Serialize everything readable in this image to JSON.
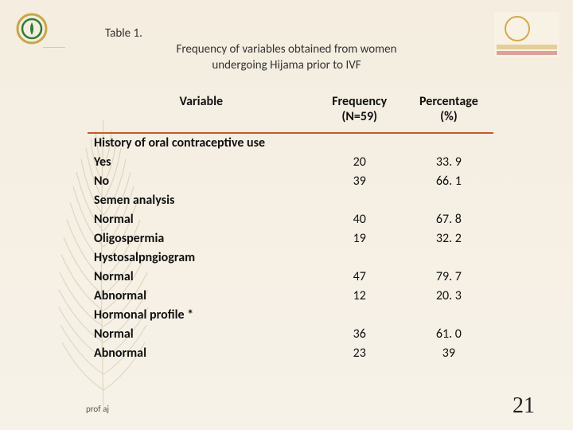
{
  "colors": {
    "feather_stroke": "#b5a77a",
    "logo_left_green": "#2e7d32",
    "logo_left_gold": "#c9a54a",
    "logo_right_red": "#b02a2a",
    "logo_right_gold": "#d4a94e",
    "hr_color": "#c55a2b"
  },
  "header": {
    "table_label": "Table 1.",
    "caption_line1": "Frequency of variables obtained from women",
    "caption_line2": "undergoing Hijama prior to IVF"
  },
  "table": {
    "columns": {
      "variable": "Variable",
      "frequency_line1": "Frequency",
      "frequency_line2": "(N=59)",
      "percentage_line1": "Percentage",
      "percentage_line2": "(%)"
    },
    "rows": [
      {
        "variable": "History of  oral contraceptive use",
        "frequency": "",
        "percentage": ""
      },
      {
        "variable": "Yes",
        "frequency": "20",
        "percentage": "33. 9"
      },
      {
        "variable": "No",
        "frequency": "39",
        "percentage": "66. 1"
      },
      {
        "variable": "Semen analysis",
        "frequency": "",
        "percentage": ""
      },
      {
        "variable": "Normal",
        "frequency": "40",
        "percentage": "67. 8"
      },
      {
        "variable": "Oligospermia",
        "frequency": "19",
        "percentage": "32. 2"
      },
      {
        "variable": "Hystosalpngiogram",
        "frequency": "",
        "percentage": ""
      },
      {
        "variable": "Normal",
        "frequency": "47",
        "percentage": "79. 7"
      },
      {
        "variable": "Abnormal",
        "frequency": "12",
        "percentage": "20. 3"
      },
      {
        "variable": "Hormonal profile *",
        "frequency": "",
        "percentage": ""
      },
      {
        "variable": "Normal",
        "frequency": "36",
        "percentage": "61. 0"
      },
      {
        "variable": "Abnormal",
        "frequency": "23",
        "percentage": "39"
      }
    ]
  },
  "footer": {
    "author": "prof aj",
    "page_number": "21"
  }
}
